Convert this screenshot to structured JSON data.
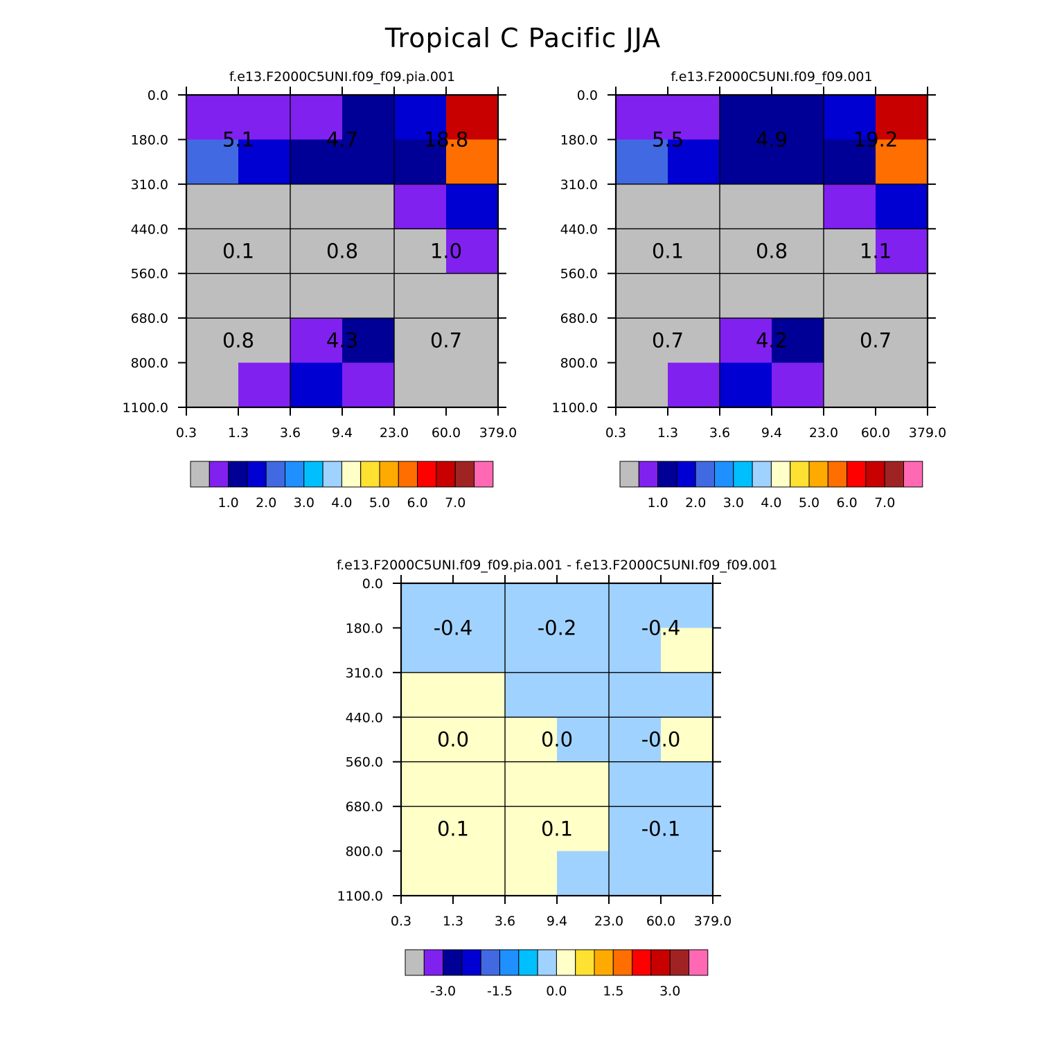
{
  "title": "Tropical C Pacific JJA",
  "chart_data": [
    {
      "type": "heatmap",
      "title": "f.e13.F2000C5UNI.f09_f09.pia.001",
      "xticks": [
        "0.3",
        "1.3",
        "3.6",
        "9.4",
        "23.0",
        "60.0",
        "379.0"
      ],
      "yticks": [
        "0.0",
        "180.0",
        "310.0",
        "440.0",
        "560.0",
        "680.0",
        "800.0",
        "1100.0"
      ],
      "grid": [
        [
          1,
          1,
          1,
          2,
          3,
          13
        ],
        [
          4,
          3,
          2,
          2,
          2,
          11
        ],
        [
          0,
          0,
          0,
          0,
          1,
          3
        ],
        [
          0,
          0,
          0,
          0,
          0,
          1
        ],
        [
          0,
          0,
          0,
          0,
          0,
          0
        ],
        [
          0,
          0,
          1,
          2,
          0,
          0
        ],
        [
          0,
          1,
          3,
          1,
          0,
          0
        ]
      ],
      "cell_labels": [
        [
          "5.1",
          "4.7",
          "18.8"
        ],
        [
          "0.1",
          "0.8",
          "1.0"
        ],
        [
          "0.8",
          "4.3",
          "0.7"
        ]
      ],
      "colorbar_ticks": [
        "1.0",
        "2.0",
        "3.0",
        "4.0",
        "5.0",
        "6.0",
        "7.0"
      ]
    },
    {
      "type": "heatmap",
      "title": "f.e13.F2000C5UNI.f09_f09.001",
      "xticks": [
        "0.3",
        "1.3",
        "3.6",
        "9.4",
        "23.0",
        "60.0",
        "379.0"
      ],
      "yticks": [
        "0.0",
        "180.0",
        "310.0",
        "440.0",
        "560.0",
        "680.0",
        "800.0",
        "1100.0"
      ],
      "grid": [
        [
          1,
          1,
          2,
          2,
          3,
          13
        ],
        [
          4,
          3,
          2,
          2,
          2,
          11
        ],
        [
          0,
          0,
          0,
          0,
          1,
          3
        ],
        [
          0,
          0,
          0,
          0,
          0,
          1
        ],
        [
          0,
          0,
          0,
          0,
          0,
          0
        ],
        [
          0,
          0,
          1,
          2,
          0,
          0
        ],
        [
          0,
          1,
          3,
          1,
          0,
          0
        ]
      ],
      "cell_labels": [
        [
          "5.5",
          "4.9",
          "19.2"
        ],
        [
          "0.1",
          "0.8",
          "1.1"
        ],
        [
          "0.7",
          "4.2",
          "0.7"
        ]
      ],
      "colorbar_ticks": [
        "1.0",
        "2.0",
        "3.0",
        "4.0",
        "5.0",
        "6.0",
        "7.0"
      ]
    },
    {
      "type": "heatmap",
      "title": "f.e13.F2000C5UNI.f09_f09.pia.001 - f.e13.F2000C5UNI.f09_f09.001",
      "xticks": [
        "0.3",
        "1.3",
        "3.6",
        "9.4",
        "23.0",
        "60.0",
        "379.0"
      ],
      "yticks": [
        "0.0",
        "180.0",
        "310.0",
        "440.0",
        "560.0",
        "680.0",
        "800.0",
        "1100.0"
      ],
      "grid": [
        [
          7,
          7,
          7,
          7,
          7,
          7
        ],
        [
          7,
          7,
          7,
          7,
          7,
          8
        ],
        [
          8,
          8,
          7,
          7,
          7,
          7
        ],
        [
          8,
          8,
          8,
          7,
          7,
          8
        ],
        [
          8,
          8,
          8,
          8,
          7,
          7
        ],
        [
          8,
          8,
          8,
          8,
          7,
          7
        ],
        [
          8,
          8,
          8,
          7,
          7,
          7
        ]
      ],
      "cell_labels": [
        [
          "-0.4",
          "-0.2",
          "-0.4"
        ],
        [
          "0.0",
          "0.0",
          "-0.0"
        ],
        [
          "0.1",
          "0.1",
          "-0.1"
        ]
      ],
      "colorbar_ticks": [
        "-3.0",
        "-1.5",
        "0.0",
        "1.5",
        "3.0"
      ]
    }
  ],
  "palette": [
    "#bebebe",
    "#8021f0",
    "#000096",
    "#0000d2",
    "#4169e1",
    "#1e90ff",
    "#00bfff",
    "#a0d2ff",
    "#ffffc8",
    "#ffe132",
    "#ffaa00",
    "#ff6e00",
    "#ff0000",
    "#c80000",
    "#a02323",
    "#ff69b4"
  ]
}
